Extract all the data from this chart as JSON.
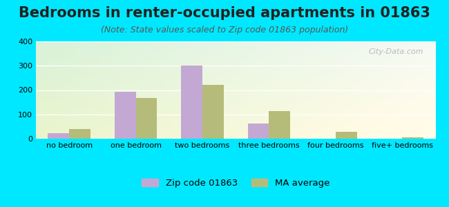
{
  "title": "Bedrooms in renter-occupied apartments in 01863",
  "subtitle": "(Note: State values scaled to Zip code 01863 population)",
  "categories": [
    "no bedroom",
    "one bedroom",
    "two bedrooms",
    "three bedrooms",
    "four bedrooms",
    "five+ bedrooms"
  ],
  "zip_values": [
    22,
    193,
    302,
    63,
    0,
    0
  ],
  "ma_values": [
    40,
    168,
    222,
    113,
    27,
    7
  ],
  "zip_color": "#c4a8d4",
  "ma_color": "#b5bc7a",
  "background_outer": "#00e8ff",
  "ylim": [
    0,
    400
  ],
  "yticks": [
    0,
    100,
    200,
    300,
    400
  ],
  "legend_zip": "Zip code 01863",
  "legend_ma": "MA average",
  "watermark": "City-Data.com",
  "title_fontsize": 15,
  "subtitle_fontsize": 9,
  "tick_fontsize": 8
}
